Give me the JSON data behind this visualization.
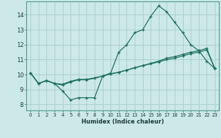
{
  "xlabel": "Humidex (Indice chaleur)",
  "bg_color": "#cce8e8",
  "grid_color": "#aacfcf",
  "line_color": "#1a6e5e",
  "xlim": [
    -0.5,
    23.5
  ],
  "ylim": [
    7.6,
    14.9
  ],
  "xticks": [
    0,
    1,
    2,
    3,
    4,
    5,
    6,
    7,
    8,
    9,
    10,
    11,
    12,
    13,
    14,
    15,
    16,
    17,
    18,
    19,
    20,
    21,
    22,
    23
  ],
  "yticks": [
    8,
    9,
    10,
    11,
    12,
    13,
    14
  ],
  "line1_x": [
    0,
    1,
    2,
    3,
    4,
    5,
    6,
    7,
    8,
    9,
    10,
    11,
    12,
    13,
    14,
    15,
    16,
    17,
    18,
    19,
    20,
    21,
    22,
    23
  ],
  "line1_y": [
    10.1,
    9.4,
    9.6,
    9.4,
    8.9,
    8.3,
    8.45,
    8.45,
    8.45,
    9.9,
    10.1,
    11.5,
    12.0,
    12.8,
    13.0,
    13.9,
    14.6,
    14.2,
    13.5,
    12.8,
    12.0,
    11.6,
    10.9,
    10.4
  ],
  "line2_x": [
    0,
    1,
    2,
    3,
    4,
    5,
    6,
    7,
    8,
    9,
    10,
    11,
    12,
    13,
    14,
    15,
    16,
    17,
    18,
    19,
    20,
    21,
    22,
    23
  ],
  "line2_y": [
    10.1,
    9.4,
    9.6,
    9.4,
    9.3,
    9.5,
    9.65,
    9.65,
    9.75,
    9.9,
    10.05,
    10.15,
    10.3,
    10.45,
    10.6,
    10.75,
    10.9,
    11.1,
    11.2,
    11.35,
    11.5,
    11.6,
    11.75,
    10.4
  ],
  "line3_x": [
    0,
    1,
    2,
    3,
    4,
    5,
    6,
    7,
    8,
    9,
    10,
    11,
    12,
    13,
    14,
    15,
    16,
    17,
    18,
    19,
    20,
    21,
    22,
    23
  ],
  "line3_y": [
    10.1,
    9.4,
    9.6,
    9.4,
    9.35,
    9.55,
    9.68,
    9.68,
    9.78,
    9.9,
    10.05,
    10.15,
    10.3,
    10.45,
    10.6,
    10.72,
    10.85,
    11.0,
    11.1,
    11.25,
    11.4,
    11.5,
    11.65,
    10.4
  ]
}
